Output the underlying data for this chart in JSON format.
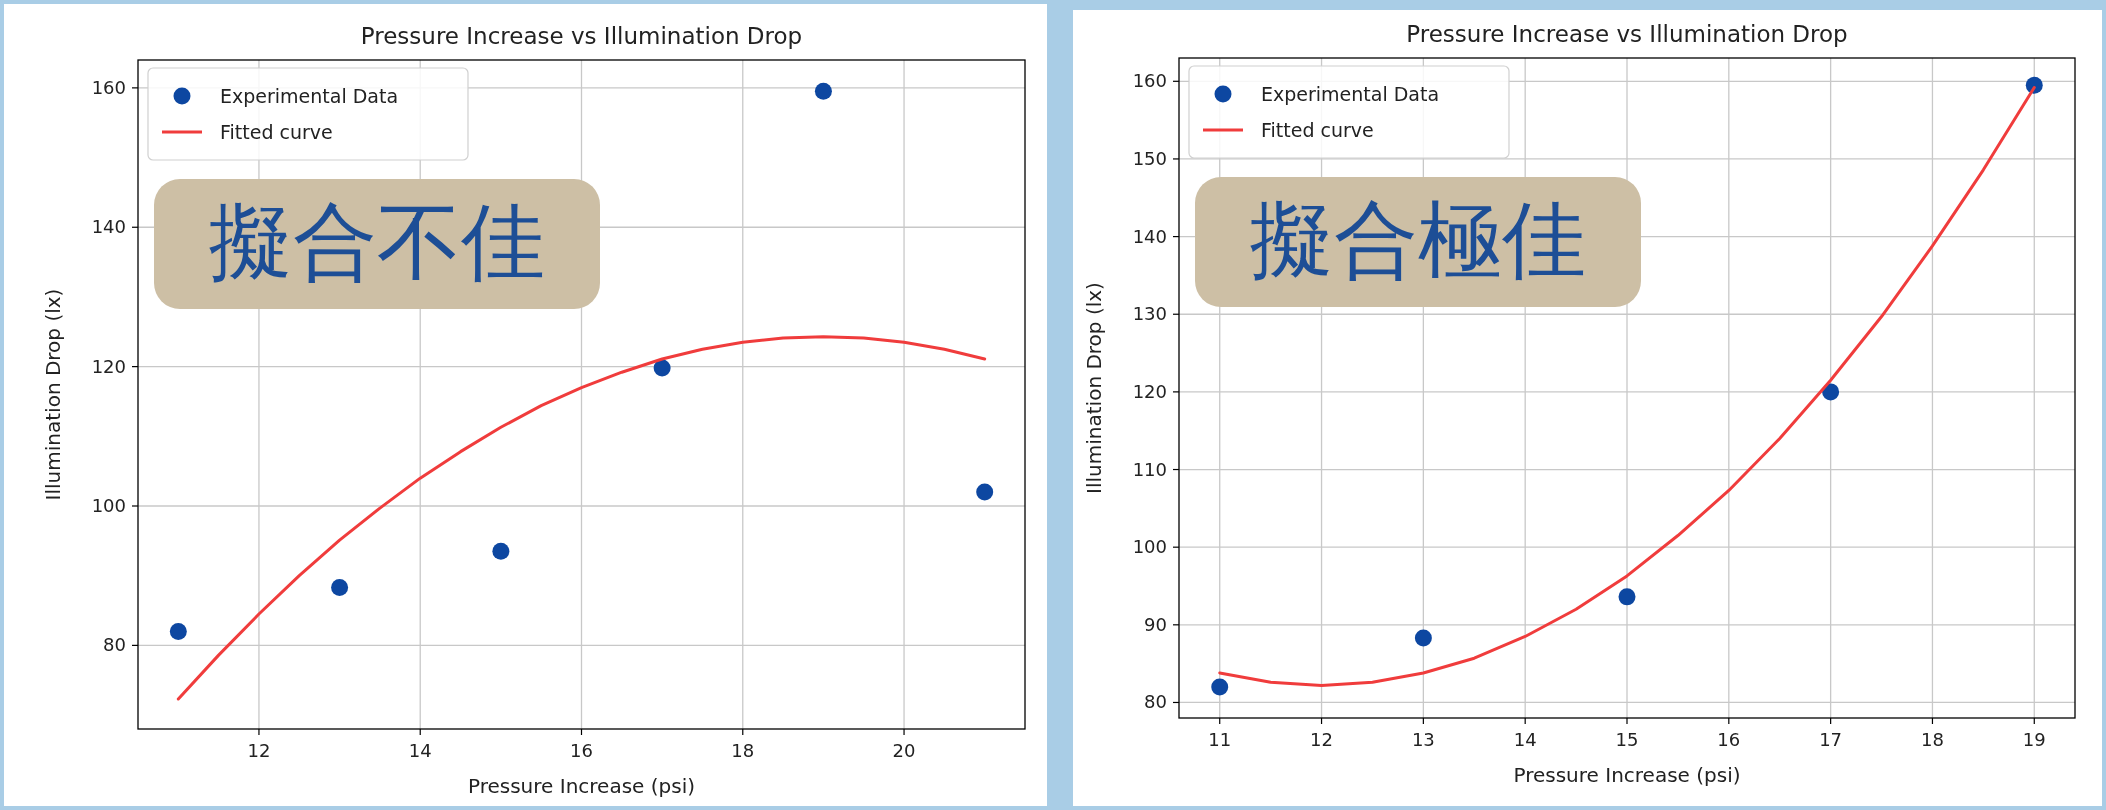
{
  "chart_data": [
    {
      "type": "scatter",
      "title": "Pressure Increase vs Illumination Drop",
      "xlabel": "Pressure Increase (psi)",
      "ylabel": "Illumination Drop (lx)",
      "xlim": [
        10.5,
        21.5
      ],
      "xticks": [
        12,
        14,
        16,
        18,
        20
      ],
      "ylim": [
        68,
        164
      ],
      "yticks": [
        80,
        100,
        120,
        140,
        160
      ],
      "grid": true,
      "legend": "top left",
      "annotations": [
        "擬合不佳"
      ],
      "series": [
        {
          "name": "Experimental Data",
          "marker": "circle",
          "color": "#0d47a1",
          "x": [
            11,
            13,
            15,
            17,
            19,
            21
          ],
          "values": [
            82,
            88.3,
            93.5,
            119.8,
            159.5,
            102
          ]
        },
        {
          "name": "Fitted curve",
          "type": "line",
          "color": "#f03c3c",
          "x": [
            11,
            11.5,
            12,
            12.5,
            13,
            13.5,
            14,
            14.5,
            15,
            15.5,
            16,
            16.5,
            17,
            17.5,
            18,
            18.5,
            19,
            19.5,
            20,
            20.5,
            21
          ],
          "values": [
            72.3,
            78.6,
            84.5,
            90,
            95.1,
            99.7,
            104,
            107.8,
            111.3,
            114.4,
            117,
            119.2,
            121.1,
            122.5,
            123.5,
            124.1,
            124.3,
            124.1,
            123.5,
            122.5,
            121.1
          ]
        }
      ]
    },
    {
      "type": "scatter",
      "title": "Pressure Increase vs Illumination Drop",
      "xlabel": "Pressure Increase (psi)",
      "ylabel": "Illumination Drop (lx)",
      "xlim": [
        10.6,
        19.4
      ],
      "xticks": [
        11,
        12,
        13,
        14,
        15,
        16,
        17,
        18,
        19
      ],
      "ylim": [
        78,
        163
      ],
      "yticks": [
        80,
        90,
        100,
        110,
        120,
        130,
        140,
        150,
        160
      ],
      "grid": true,
      "legend": "top left",
      "annotations": [
        "擬合極佳"
      ],
      "series": [
        {
          "name": "Experimental Data",
          "marker": "circle",
          "color": "#0d47a1",
          "x": [
            11,
            13,
            15,
            17,
            19
          ],
          "values": [
            82,
            88.3,
            93.6,
            120,
            159.5
          ]
        },
        {
          "name": "Fitted curve",
          "type": "line",
          "color": "#f03c3c",
          "x": [
            11,
            11.5,
            12,
            12.5,
            13,
            13.5,
            14,
            14.5,
            15,
            15.5,
            16,
            16.5,
            17,
            17.5,
            18,
            18.5,
            19
          ],
          "values": [
            83.8,
            82.6,
            82.2,
            82.6,
            83.8,
            85.7,
            88.5,
            92,
            96.3,
            101.5,
            107.3,
            114,
            121.5,
            129.7,
            138.8,
            148.6,
            159.2
          ]
        }
      ]
    }
  ]
}
